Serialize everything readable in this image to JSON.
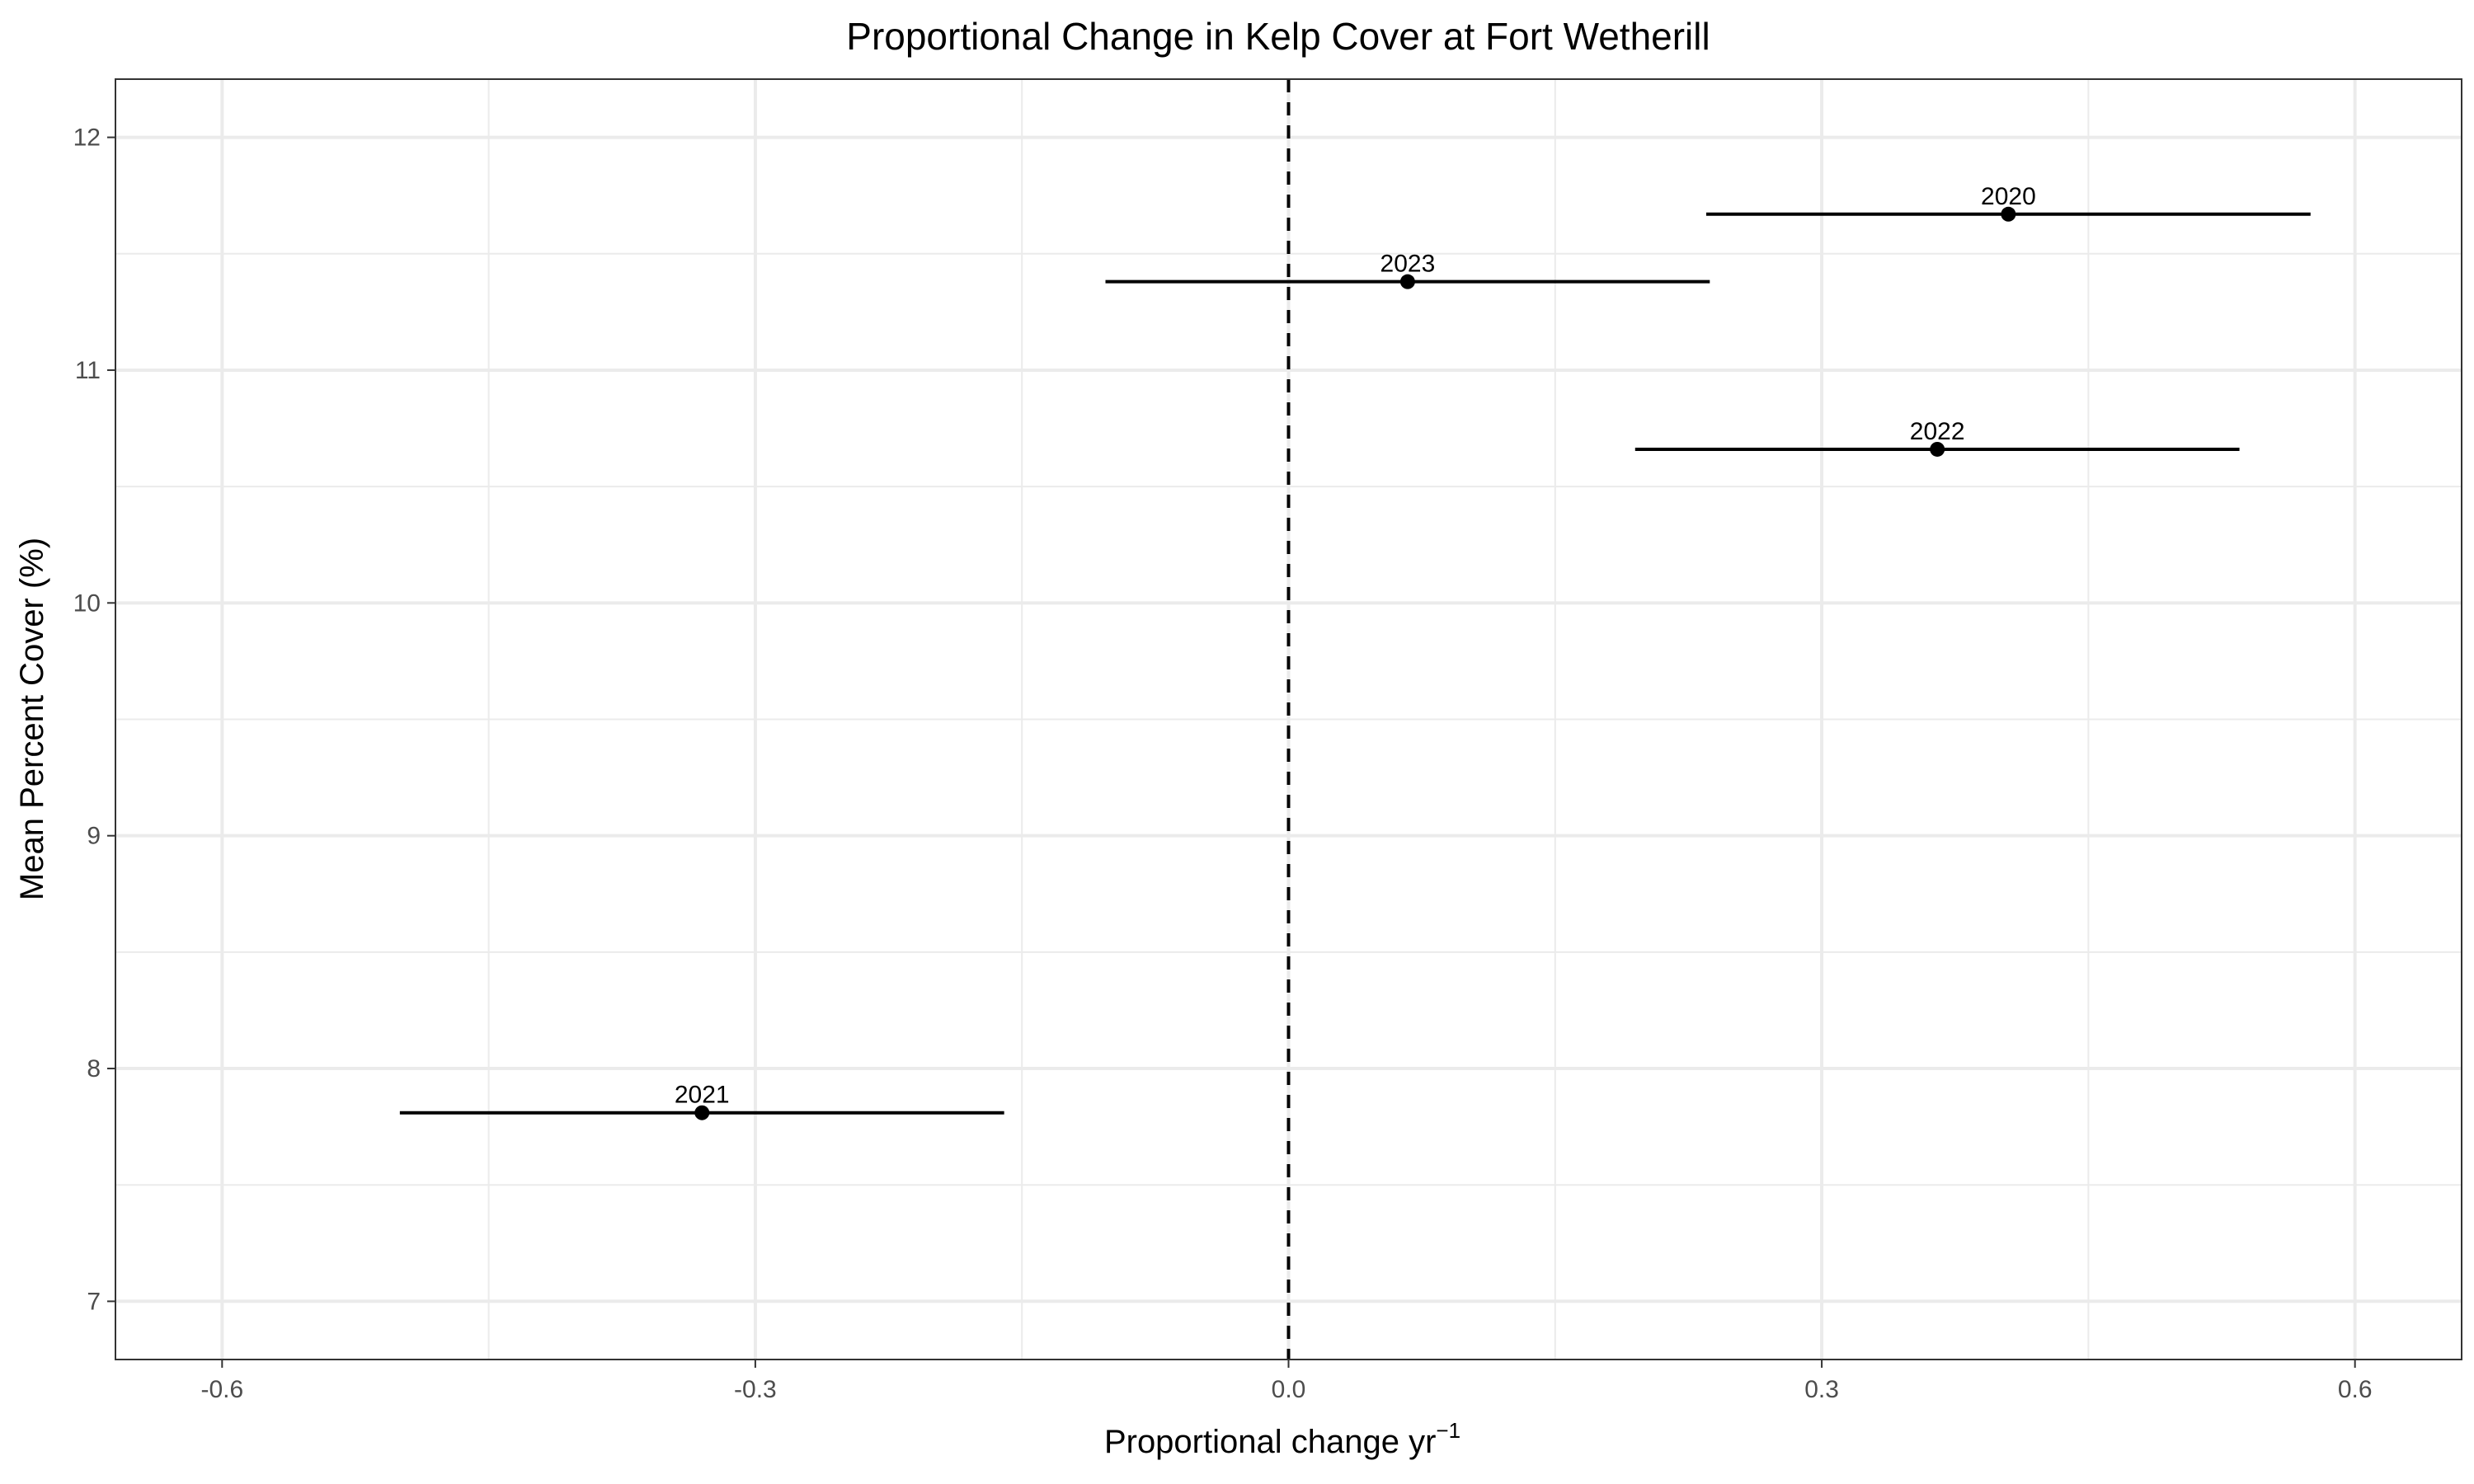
{
  "chart_data": {
    "type": "scatter",
    "title": "Proportional Change in Kelp Cover at Fort Wetherill",
    "xlabel": "Proportional change  yr",
    "xlabel_superscript": "−1",
    "ylabel": "Mean Percent Cover (%)",
    "xlim": [
      -0.66,
      0.66
    ],
    "ylim": [
      6.75,
      12.25
    ],
    "x_ticks": [
      -0.6,
      -0.3,
      0.0,
      0.3,
      0.6
    ],
    "x_tick_labels": [
      "-0.6",
      "-0.3",
      "0.0",
      "0.3",
      "0.6"
    ],
    "y_ticks": [
      7,
      8,
      9,
      10,
      11,
      12
    ],
    "y_tick_labels": [
      "7",
      "8",
      "9",
      "10",
      "11",
      "12"
    ],
    "grid": true,
    "reference_line": {
      "x": 0,
      "style": "dashed"
    },
    "points": [
      {
        "label": "2020",
        "x": 0.405,
        "y": 11.67,
        "xmin": 0.235,
        "xmax": 0.575
      },
      {
        "label": "2021",
        "x": -0.33,
        "y": 7.81,
        "xmin": -0.5,
        "xmax": -0.16
      },
      {
        "label": "2022",
        "x": 0.365,
        "y": 10.66,
        "xmin": 0.195,
        "xmax": 0.535
      },
      {
        "label": "2023",
        "x": 0.067,
        "y": 11.38,
        "xmin": -0.103,
        "xmax": 0.237
      }
    ]
  }
}
